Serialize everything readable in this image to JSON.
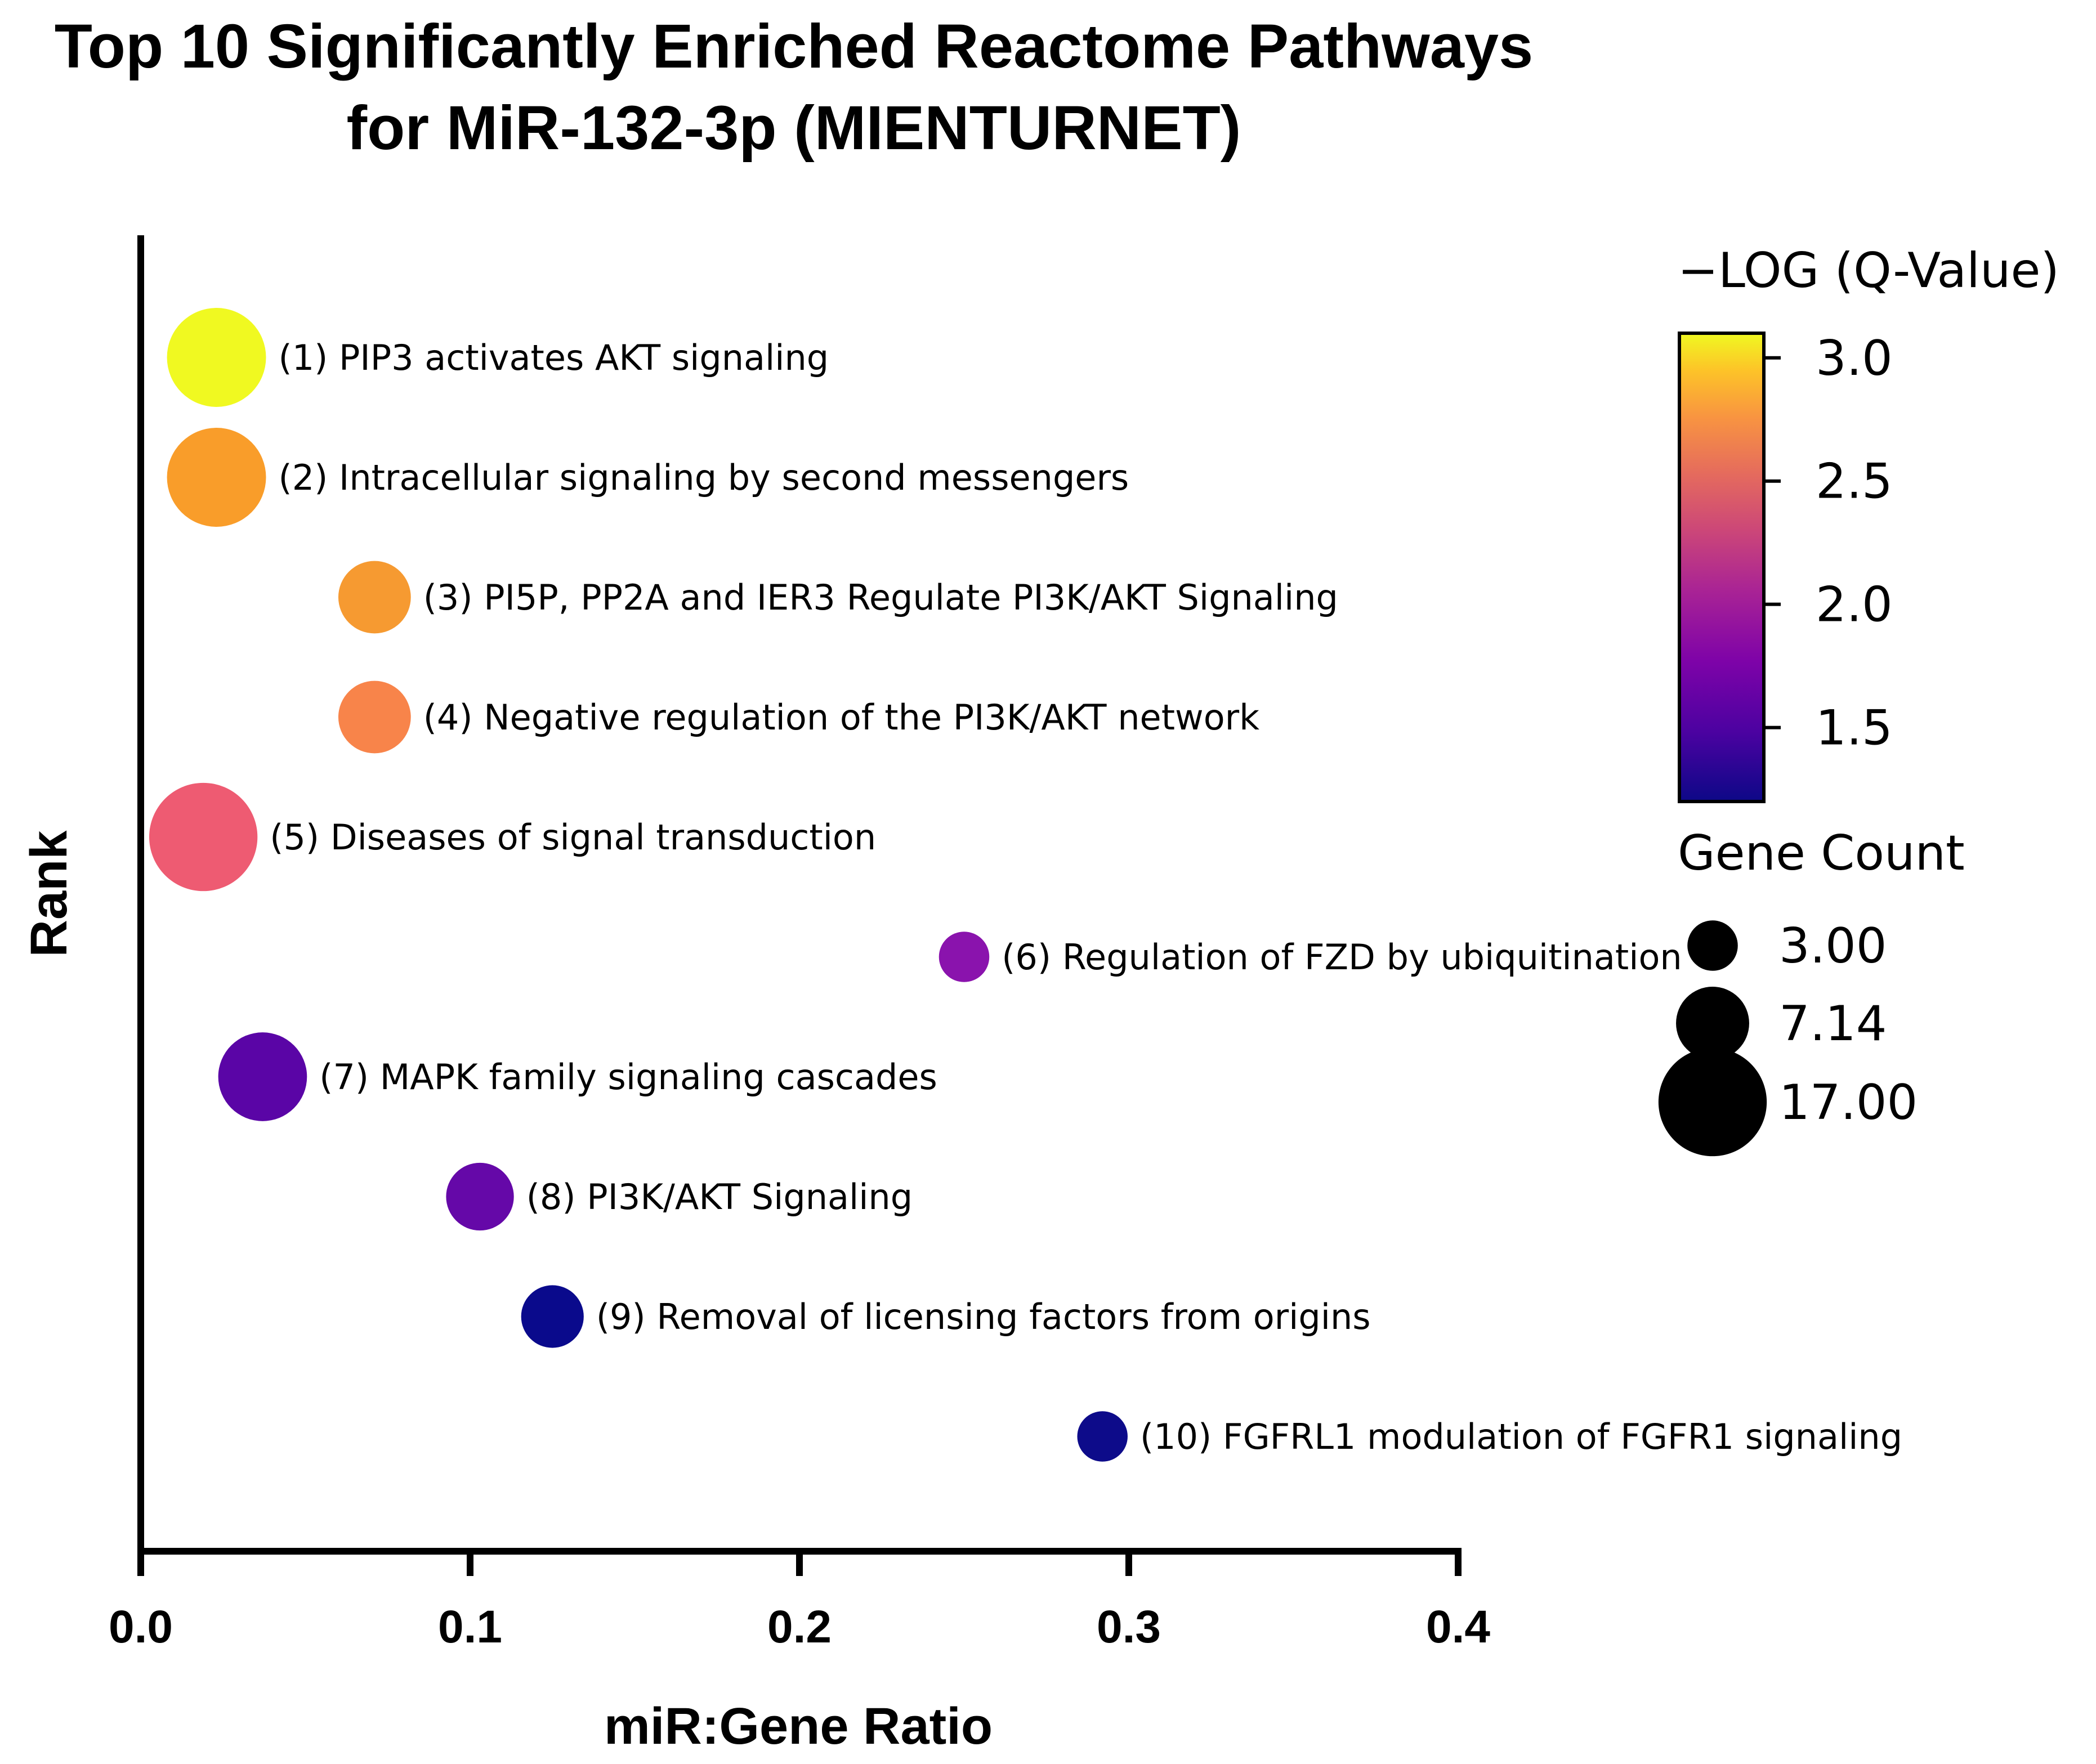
{
  "chart_data": {
    "type": "scatter",
    "title_lines": [
      "Top 10 Significantly Enriched Reactome Pathways",
      "for MiR-132-3p (MIENTURNET)"
    ],
    "xlabel": "miR:Gene Ratio",
    "ylabel": "Rank",
    "xlim": [
      0.0,
      0.4
    ],
    "x_ticks": [
      "0.0",
      "0.1",
      "0.2",
      "0.3",
      "0.4"
    ],
    "color_legend": {
      "title": "−LOG (Q-Value)",
      "range": [
        1.2,
        3.1
      ],
      "ticks": [
        "3.0",
        "2.5",
        "2.0",
        "1.5"
      ],
      "colorscale": "plasma"
    },
    "size_legend": {
      "title": "Gene Count",
      "entries": [
        "3.00",
        "7.14",
        "17.00"
      ]
    },
    "points": [
      {
        "rank": 1,
        "label": "(1) PIP3 activates AKT signaling",
        "ratio": 0.023,
        "gene_count": 14,
        "neg_log_q": 3.04,
        "color": "#f0f921"
      },
      {
        "rank": 2,
        "label": "(2) Intracellular signaling by second messengers",
        "ratio": 0.023,
        "gene_count": 14,
        "neg_log_q": 2.65,
        "color": "#f99d2a"
      },
      {
        "rank": 3,
        "label": "(3) PI5P, PP2A and IER3 Regulate PI3K/AKT Signaling",
        "ratio": 0.071,
        "gene_count": 7,
        "neg_log_q": 2.62,
        "color": "#f69a31"
      },
      {
        "rank": 4,
        "label": "(4) Negative regulation of the PI3K/AKT network",
        "ratio": 0.071,
        "gene_count": 7,
        "neg_log_q": 2.5,
        "color": "#f8844a"
      },
      {
        "rank": 5,
        "label": "(5) Diseases of signal transduction",
        "ratio": 0.019,
        "gene_count": 17,
        "neg_log_q": 2.3,
        "color": "#ee5b72"
      },
      {
        "rank": 6,
        "label": "(6) Regulation of FZD by ubiquitination",
        "ratio": 0.25,
        "gene_count": 3,
        "neg_log_q": 1.75,
        "color": "#8a13ad"
      },
      {
        "rank": 7,
        "label": "(7) MAPK family signaling cascades",
        "ratio": 0.037,
        "gene_count": 11,
        "neg_log_q": 1.55,
        "color": "#5a05a6"
      },
      {
        "rank": 8,
        "label": "(8) PI3K/AKT Signaling",
        "ratio": 0.103,
        "gene_count": 6,
        "neg_log_q": 1.6,
        "color": "#6508a8"
      },
      {
        "rank": 9,
        "label": "(9) Removal of licensing factors from origins",
        "ratio": 0.125,
        "gene_count": 5,
        "neg_log_q": 1.25,
        "color": "#0a0a8c"
      },
      {
        "rank": 10,
        "label": "(10) FGFRL1 modulation of FGFR1 signaling",
        "ratio": 0.292,
        "gene_count": 3,
        "neg_log_q": 1.25,
        "color": "#0d0b8a"
      }
    ]
  }
}
